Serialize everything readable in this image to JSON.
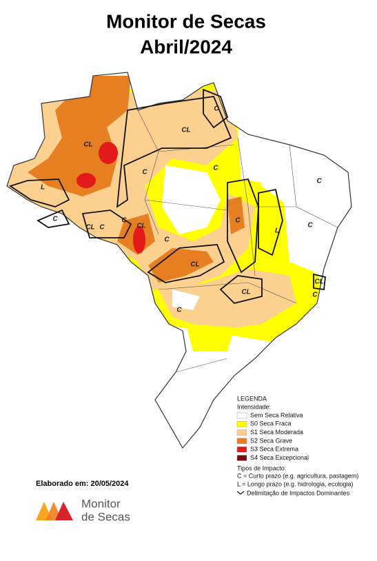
{
  "title": {
    "line1": "Monitor de Secas",
    "line2": "Abril/2024"
  },
  "legend": {
    "title": "LEGENDA",
    "intensity_title": "Intensidade:",
    "intensity": [
      {
        "label": "Sem Seca Relativa",
        "color": "#ffffff"
      },
      {
        "label": "S0 Seca Fraca",
        "color": "#ffff00"
      },
      {
        "label": "S1 Seca Moderada",
        "color": "#fcd08e"
      },
      {
        "label": "S2 Seca Grave",
        "color": "#e67e22"
      },
      {
        "label": "S3 Seca Extrema",
        "color": "#e31a1c"
      },
      {
        "label": "S4 Seca Excepcional",
        "color": "#7a0c0c"
      }
    ],
    "impact_title": "Tipos de Impacto:",
    "impact_items": [
      "C = Curto prazo (e.g. agricultura, pastagem)",
      "L = Longo prazo (e.g. hidrologia, ecologia)",
      "Delimitação de Impactos Dominantes"
    ]
  },
  "credit": "Elaborado em: 20/05/2024",
  "logo": {
    "line1": "Monitor",
    "line2": "de Secas"
  },
  "map_labels": [
    "C",
    "CL",
    "CL",
    "C",
    "L",
    "C",
    "CL",
    "C",
    "C",
    "CL",
    "C",
    "C",
    "C",
    "L",
    "CL",
    "C",
    "CL",
    "C",
    "CL",
    "C",
    "C"
  ]
}
